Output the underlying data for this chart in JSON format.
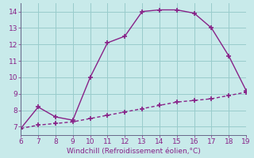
{
  "title": "",
  "xlabel": "Windchill (Refroidissement éolien,°C)",
  "ylabel": "",
  "background_color": "#c8eaea",
  "line_color": "#882288",
  "grid_color": "#99cccc",
  "xlim": [
    6,
    19
  ],
  "ylim": [
    6.5,
    14.5
  ],
  "xticks": [
    6,
    7,
    8,
    9,
    10,
    11,
    12,
    13,
    14,
    15,
    16,
    17,
    18,
    19
  ],
  "yticks": [
    7,
    8,
    9,
    10,
    11,
    12,
    13,
    14
  ],
  "curve1_x": [
    6,
    7,
    8,
    9,
    10,
    11,
    12,
    13,
    14,
    15,
    16,
    17,
    18,
    19
  ],
  "curve1_y": [
    6.9,
    8.2,
    7.6,
    7.4,
    10.0,
    12.1,
    12.5,
    14.0,
    14.1,
    14.1,
    13.9,
    13.0,
    11.3,
    9.2
  ],
  "curve2_x": [
    6,
    7,
    8,
    9,
    10,
    11,
    12,
    13,
    14,
    15,
    16,
    17,
    18,
    19
  ],
  "curve2_y": [
    6.9,
    7.1,
    7.2,
    7.3,
    7.5,
    7.7,
    7.9,
    8.1,
    8.3,
    8.5,
    8.6,
    8.7,
    8.9,
    9.1
  ],
  "font_color": "#882288",
  "tick_fontsize": 6.5,
  "label_fontsize": 6.5,
  "marker": "+",
  "marker_size": 5,
  "linewidth": 1.0,
  "spine_color": "#666688"
}
